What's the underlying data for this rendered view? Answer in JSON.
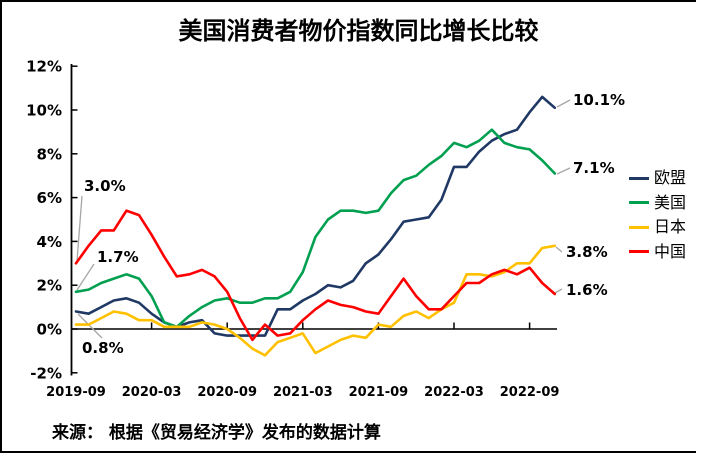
{
  "title": "美国消费者物价指数同比增长比较",
  "source_note": "来源： 根据《贸易经济学》发布的数据计算",
  "colors": {
    "eu": "#1f3864",
    "us": "#00a050",
    "japan": "#ffc000",
    "china": "#ff0000",
    "leader": "#a6a6a6",
    "axis": "#000000"
  },
  "axis": {
    "y_tick_labels": [
      "12%",
      "10%",
      "8%",
      "6%",
      "4%",
      "2%",
      "0%",
      "-2%"
    ],
    "y_tick_values": [
      12,
      10,
      8,
      6,
      4,
      2,
      0,
      -2
    ],
    "x_tick_labels": [
      "2019-09",
      "2020-03",
      "2020-09",
      "2021-03",
      "2021-09",
      "2022-03",
      "2022-09"
    ]
  },
  "annotations": {
    "start": [
      {
        "series": "china",
        "text": "3.0%"
      },
      {
        "series": "us",
        "text": "1.7%"
      },
      {
        "series": "eu",
        "text": "0.8%"
      }
    ],
    "end": [
      {
        "series": "eu",
        "text": "10.1%"
      },
      {
        "series": "us",
        "text": "7.1%"
      },
      {
        "series": "japan",
        "text": "3.8%"
      },
      {
        "series": "china",
        "text": "1.6%"
      }
    ]
  },
  "chart_data": {
    "type": "line",
    "title": "美国消费者物价指数同比增长比较",
    "xlabel": "",
    "ylabel": "",
    "ylim": [
      -2,
      12
    ],
    "grid": false,
    "legend_position": "right",
    "x": [
      "2019-09",
      "2019-10",
      "2019-11",
      "2019-12",
      "2020-01",
      "2020-02",
      "2020-03",
      "2020-04",
      "2020-05",
      "2020-06",
      "2020-07",
      "2020-08",
      "2020-09",
      "2020-10",
      "2020-11",
      "2020-12",
      "2021-01",
      "2021-02",
      "2021-03",
      "2021-04",
      "2021-05",
      "2021-06",
      "2021-07",
      "2021-08",
      "2021-09",
      "2021-10",
      "2021-11",
      "2021-12",
      "2022-01",
      "2022-02",
      "2022-03",
      "2022-04",
      "2022-05",
      "2022-06",
      "2022-07",
      "2022-08",
      "2022-09",
      "2022-10",
      "2022-11"
    ],
    "series": [
      {
        "id": "eu",
        "name": "欧盟",
        "color": "#1f3864",
        "values": [
          0.8,
          0.7,
          1.0,
          1.3,
          1.4,
          1.2,
          0.7,
          0.3,
          0.1,
          0.3,
          0.4,
          -0.2,
          -0.3,
          -0.3,
          -0.3,
          -0.3,
          0.9,
          0.9,
          1.3,
          1.6,
          2.0,
          1.9,
          2.2,
          3.0,
          3.4,
          4.1,
          4.9,
          5.0,
          5.1,
          5.9,
          7.4,
          7.4,
          8.1,
          8.6,
          8.9,
          9.1,
          9.9,
          10.6,
          10.1
        ]
      },
      {
        "id": "us",
        "name": "美国",
        "color": "#00a050",
        "values": [
          1.7,
          1.8,
          2.1,
          2.3,
          2.5,
          2.3,
          1.5,
          0.3,
          0.1,
          0.6,
          1.0,
          1.3,
          1.4,
          1.2,
          1.2,
          1.4,
          1.4,
          1.7,
          2.6,
          4.2,
          5.0,
          5.4,
          5.4,
          5.3,
          5.4,
          6.2,
          6.8,
          7.0,
          7.5,
          7.9,
          8.5,
          8.3,
          8.6,
          9.1,
          8.5,
          8.3,
          8.2,
          7.7,
          7.1
        ]
      },
      {
        "id": "japan",
        "name": "日本",
        "color": "#ffc000",
        "values": [
          0.2,
          0.2,
          0.5,
          0.8,
          0.7,
          0.4,
          0.4,
          0.1,
          0.1,
          0.1,
          0.3,
          0.2,
          0.0,
          -0.4,
          -0.9,
          -1.2,
          -0.6,
          -0.4,
          -0.2,
          -1.1,
          -0.8,
          -0.5,
          -0.3,
          -0.4,
          0.2,
          0.1,
          0.6,
          0.8,
          0.5,
          0.9,
          1.2,
          2.5,
          2.5,
          2.4,
          2.6,
          3.0,
          3.0,
          3.7,
          3.8
        ]
      },
      {
        "id": "china",
        "name": "中国",
        "color": "#ff0000",
        "values": [
          3.0,
          3.8,
          4.5,
          4.5,
          5.4,
          5.2,
          4.3,
          3.3,
          2.4,
          2.5,
          2.7,
          2.4,
          1.7,
          0.5,
          -0.5,
          0.2,
          -0.3,
          -0.2,
          0.4,
          0.9,
          1.3,
          1.1,
          1.0,
          0.8,
          0.7,
          1.5,
          2.3,
          1.5,
          0.9,
          0.9,
          1.5,
          2.1,
          2.1,
          2.5,
          2.7,
          2.5,
          2.8,
          2.1,
          1.6
        ]
      }
    ]
  }
}
